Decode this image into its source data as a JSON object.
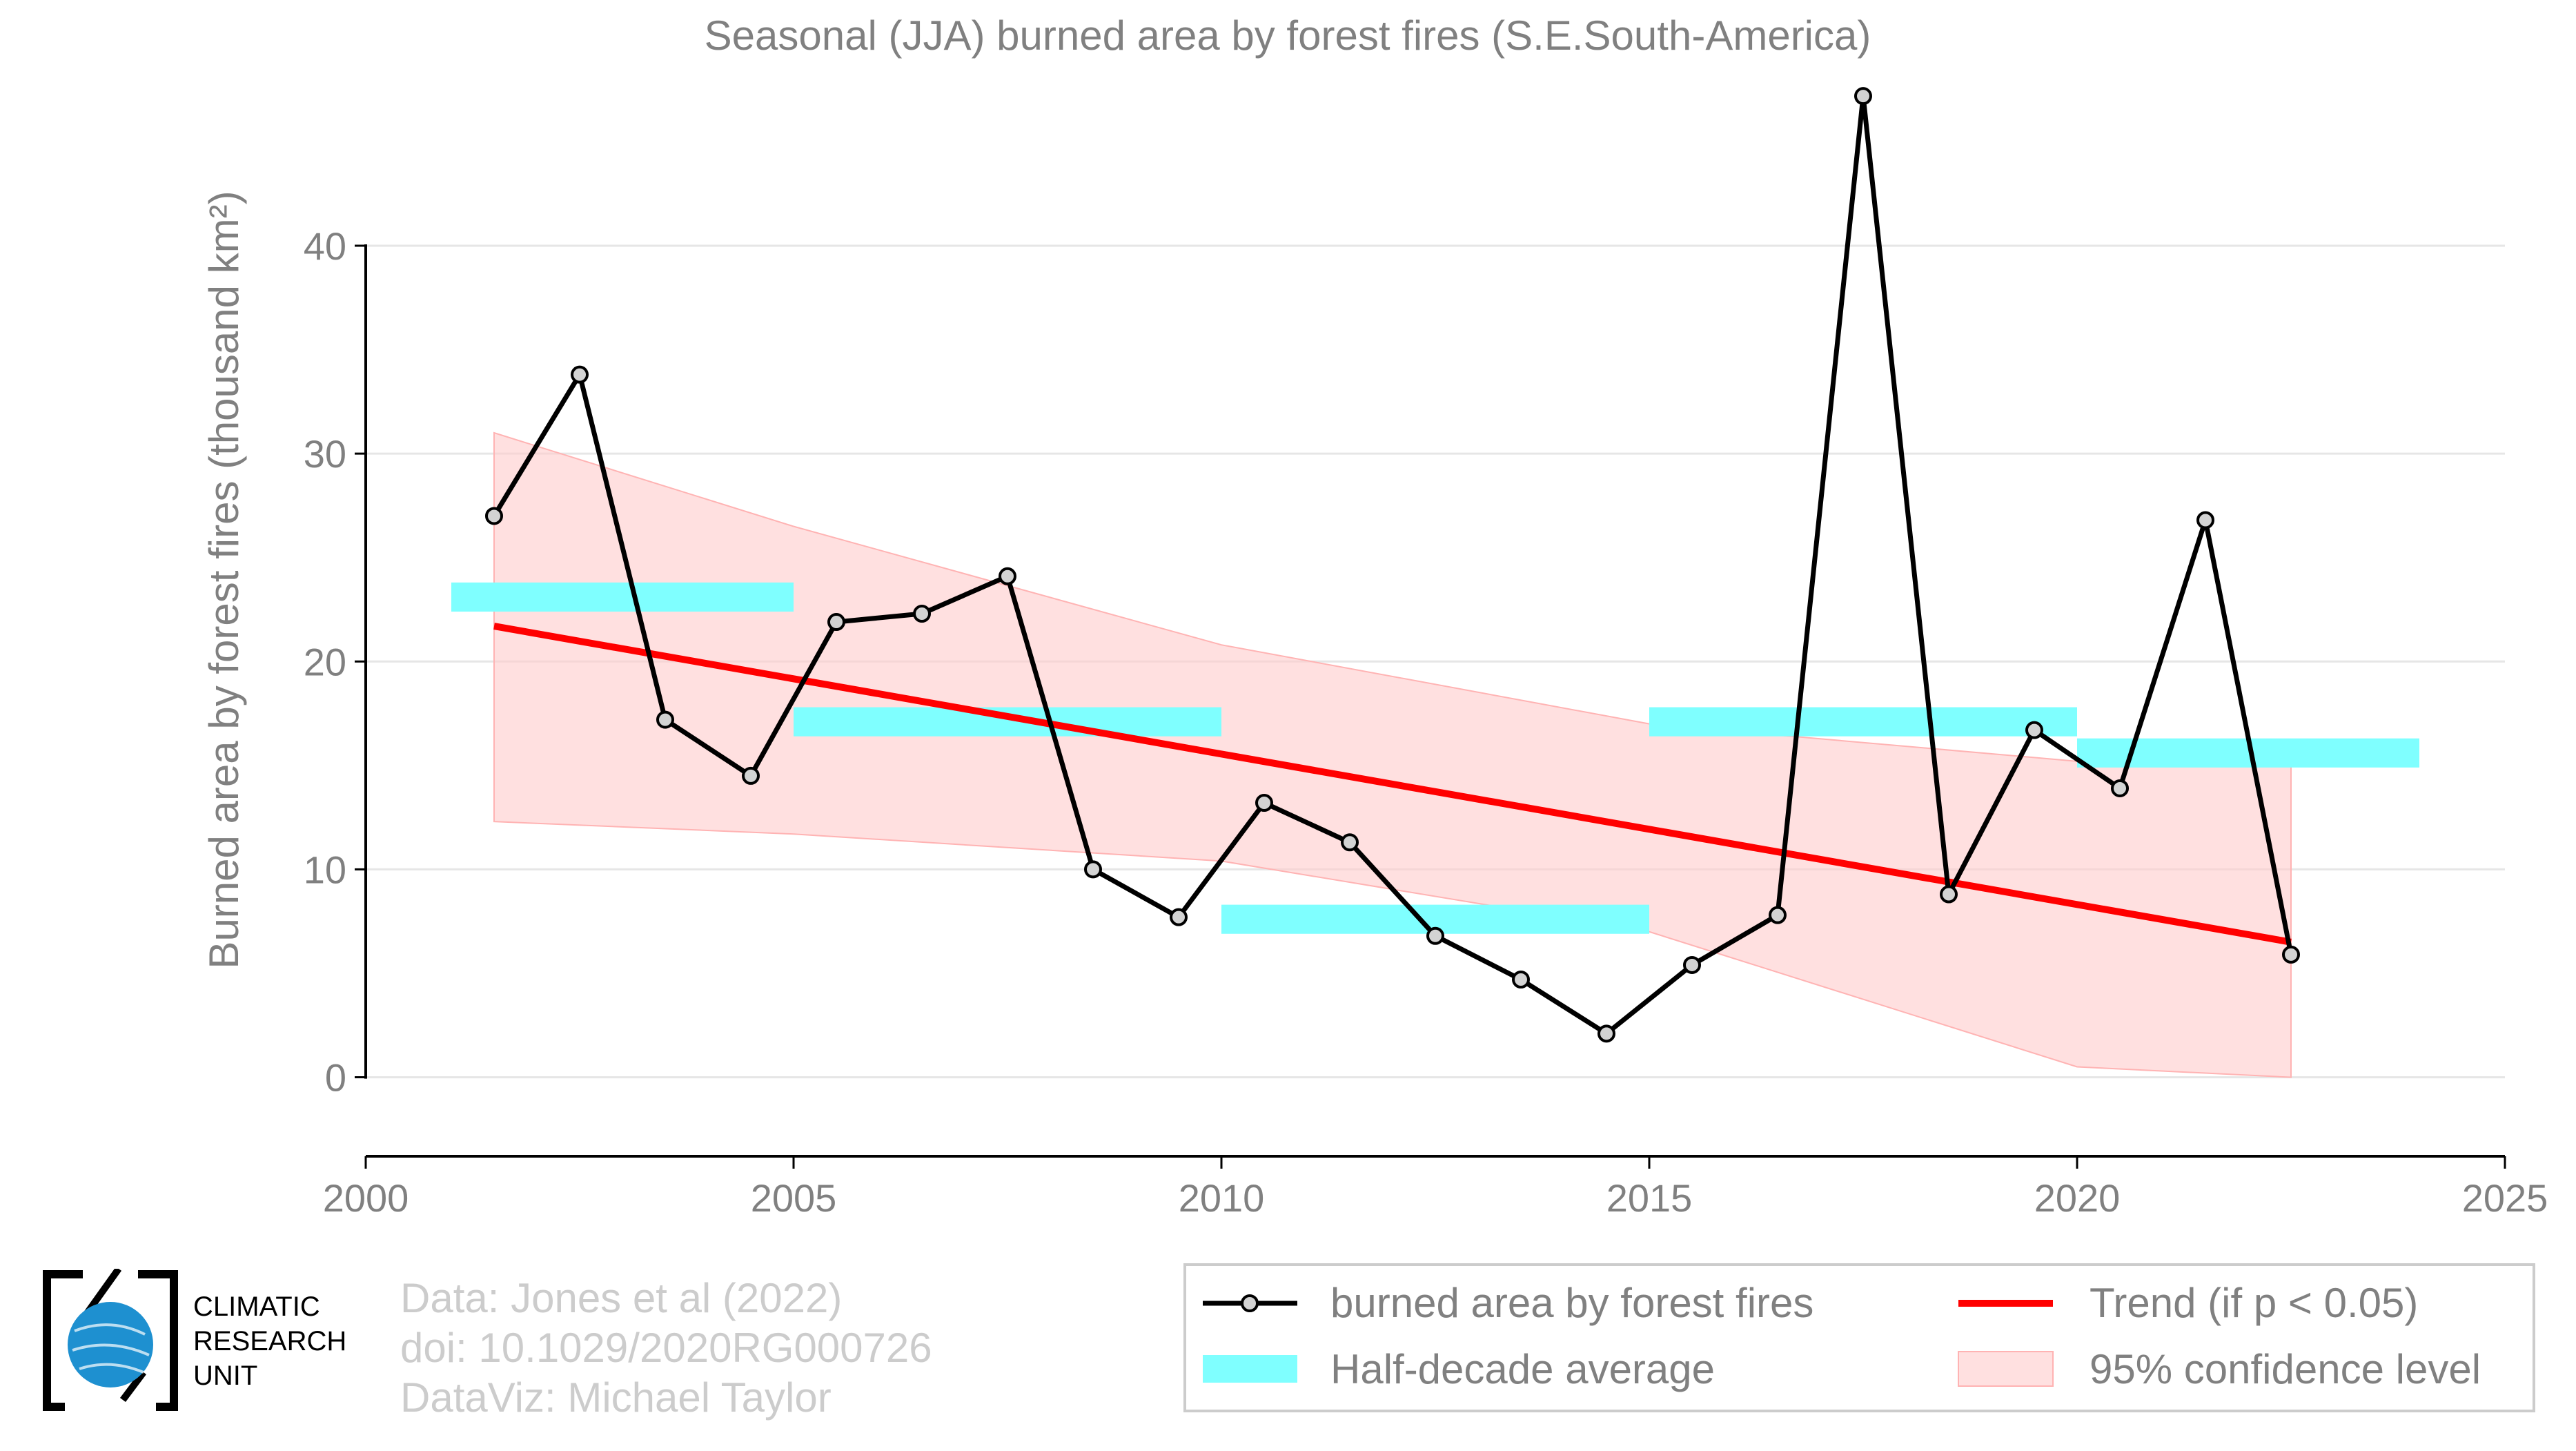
{
  "chart_data": {
    "type": "line",
    "title": "Seasonal (JJA) burned area by forest fires (S.E.South-America)",
    "ylabel": "Burned area by forest fires (thousand km²)",
    "xlabel": "",
    "xlim": [
      2000,
      2025
    ],
    "ylim": [
      -3.8,
      48.5
    ],
    "x_ticks": [
      "2000",
      "2005",
      "2010",
      "2015",
      "2020",
      "2025"
    ],
    "y_ticks": [
      "0",
      "10",
      "20",
      "30",
      "40"
    ],
    "grid": "horizontal",
    "legend_position": "bottom-right",
    "series": [
      {
        "name": "burned area by forest fires",
        "color": "#000000",
        "x": [
          2001.5,
          2002.5,
          2003.5,
          2004.5,
          2005.5,
          2006.5,
          2007.5,
          2008.5,
          2009.5,
          2010.5,
          2011.5,
          2012.5,
          2013.5,
          2014.5,
          2015.5,
          2016.5,
          2017.5,
          2018.5,
          2019.5,
          2020.5,
          2021.5,
          2022.5
        ],
        "values": [
          27.0,
          33.8,
          17.2,
          14.5,
          21.9,
          22.3,
          24.1,
          10.0,
          7.7,
          13.2,
          11.3,
          6.8,
          4.7,
          2.1,
          5.4,
          7.8,
          47.2,
          8.8,
          16.7,
          13.9,
          26.8,
          5.9
        ]
      },
      {
        "name": "Half-decade average",
        "color": "#7fffff",
        "segments": [
          {
            "x0": 2001,
            "x1": 2005,
            "value": 23.1
          },
          {
            "x0": 2005,
            "x1": 2010,
            "value": 17.1
          },
          {
            "x0": 2010,
            "x1": 2015,
            "value": 7.6
          },
          {
            "x0": 2015,
            "x1": 2020,
            "value": 17.1
          },
          {
            "x0": 2020,
            "x1": 2024,
            "value": 15.6
          }
        ]
      },
      {
        "name": "Trend (if p < 0.05)",
        "color": "#ff0000",
        "x": [
          2001.5,
          2022.5
        ],
        "values": [
          21.7,
          6.5
        ]
      },
      {
        "name": "95% confidence level",
        "color": "#ffcccc",
        "x": [
          2001.5,
          2005,
          2010,
          2015,
          2020,
          2022.5
        ],
        "upper": [
          31.0,
          26.5,
          20.8,
          17.0,
          15.2,
          15.2
        ],
        "lower": [
          12.3,
          11.7,
          10.4,
          7.0,
          0.5,
          0.0
        ]
      }
    ]
  },
  "legend": {
    "items": [
      {
        "label": "burned area by forest fires"
      },
      {
        "label": "Trend (if p < 0.05)"
      },
      {
        "label": "Half-decade average"
      },
      {
        "label": "95% confidence level"
      }
    ]
  },
  "credits": {
    "line1": "Data: Jones et al (2022)",
    "line2": "doi: 10.1029/2020RG000726",
    "line3": "DataViz: Michael Taylor"
  },
  "logo": {
    "line1": "CLIMATIC",
    "line2": "RESEARCH",
    "line3": "UNIT"
  },
  "colors": {
    "axis_text": "#808080",
    "grid": "#e6e6e6",
    "credit_text": "#cccccc",
    "logo_blue": "#1e90d0"
  }
}
